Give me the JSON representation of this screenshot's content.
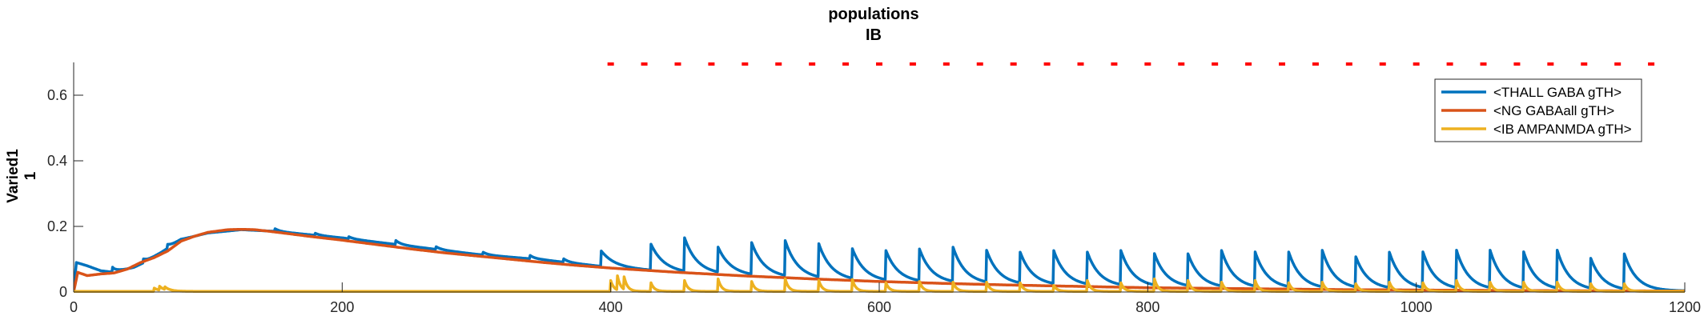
{
  "chart_data": {
    "type": "line",
    "title_lines": [
      "populations",
      "IB"
    ],
    "ylabel_lines": [
      "Varied1",
      "1"
    ],
    "xlabel": "",
    "xlim": [
      0,
      1200
    ],
    "ylim": [
      0,
      0.7
    ],
    "x_ticks": [
      0,
      200,
      400,
      600,
      800,
      1000,
      1200
    ],
    "y_ticks": [
      0,
      0.2,
      0.4,
      0.6
    ],
    "y_tick_labels": [
      "0",
      "0.2",
      "0.4",
      "0.6"
    ],
    "grid": false,
    "legend_location": "top-right",
    "pulse_marker": {
      "color": "#FF0000",
      "y": 0.695,
      "x_start": 400,
      "x_end": 1180,
      "spacing": 25
    },
    "series": [
      {
        "name": "<THALL GABA gTH>",
        "color": "#0072BD",
        "baseline": [
          [
            0,
            0.0
          ],
          [
            2,
            0.09
          ],
          [
            10,
            0.08
          ],
          [
            20,
            0.065
          ],
          [
            30,
            0.06
          ],
          [
            45,
            0.075
          ],
          [
            55,
            0.095
          ],
          [
            65,
            0.12
          ],
          [
            80,
            0.16
          ],
          [
            100,
            0.18
          ],
          [
            125,
            0.19
          ],
          [
            150,
            0.185
          ],
          [
            200,
            0.165
          ],
          [
            250,
            0.14
          ],
          [
            300,
            0.115
          ],
          [
            350,
            0.098
          ],
          [
            400,
            0.075
          ],
          [
            450,
            0.06
          ],
          [
            500,
            0.05
          ],
          [
            550,
            0.04
          ],
          [
            600,
            0.032
          ],
          [
            700,
            0.022
          ],
          [
            800,
            0.015
          ],
          [
            900,
            0.01
          ],
          [
            1000,
            0.007
          ],
          [
            1200,
            0.003
          ]
        ],
        "early_bumps": [
          [
            29,
            0.015
          ],
          [
            52,
            0.012
          ],
          [
            70,
            0.012
          ],
          [
            150,
            0.008
          ],
          [
            180,
            0.006
          ],
          [
            205,
            0.006
          ],
          [
            240,
            0.012
          ],
          [
            270,
            0.008
          ],
          [
            305,
            0.008
          ],
          [
            340,
            0.01
          ],
          [
            365,
            0.01
          ]
        ],
        "spike_times": [
          393,
          430,
          455,
          480,
          505,
          530,
          555,
          580,
          605,
          630,
          655,
          680,
          705,
          730,
          755,
          780,
          805,
          830,
          855,
          880,
          905,
          930,
          955,
          980,
          1005,
          1030,
          1055,
          1080,
          1105,
          1130,
          1155
        ],
        "spike_peaks": [
          0.125,
          0.145,
          0.16,
          0.13,
          0.145,
          0.15,
          0.14,
          0.125,
          0.12,
          0.125,
          0.13,
          0.12,
          0.115,
          0.12,
          0.115,
          0.12,
          0.11,
          0.11,
          0.12,
          0.115,
          0.115,
          0.12,
          0.1,
          0.115,
          0.115,
          0.12,
          0.12,
          0.115,
          0.12,
          0.095,
          0.11
        ],
        "spike_decay": 9
      },
      {
        "name": "<NG GABAall gTH>",
        "color": "#D95319",
        "points": [
          [
            0,
            0.0
          ],
          [
            3,
            0.06
          ],
          [
            10,
            0.05
          ],
          [
            20,
            0.055
          ],
          [
            30,
            0.058
          ],
          [
            40,
            0.07
          ],
          [
            50,
            0.09
          ],
          [
            60,
            0.105
          ],
          [
            70,
            0.125
          ],
          [
            80,
            0.155
          ],
          [
            90,
            0.17
          ],
          [
            100,
            0.182
          ],
          [
            115,
            0.19
          ],
          [
            125,
            0.191
          ],
          [
            135,
            0.19
          ],
          [
            150,
            0.183
          ],
          [
            175,
            0.17
          ],
          [
            200,
            0.158
          ],
          [
            225,
            0.145
          ],
          [
            250,
            0.132
          ],
          [
            275,
            0.12
          ],
          [
            300,
            0.11
          ],
          [
            325,
            0.1
          ],
          [
            350,
            0.09
          ],
          [
            375,
            0.081
          ],
          [
            400,
            0.073
          ],
          [
            450,
            0.06
          ],
          [
            500,
            0.049
          ],
          [
            550,
            0.04
          ],
          [
            600,
            0.032
          ],
          [
            650,
            0.026
          ],
          [
            700,
            0.021
          ],
          [
            750,
            0.017
          ],
          [
            800,
            0.013
          ],
          [
            850,
            0.011
          ],
          [
            900,
            0.009
          ],
          [
            950,
            0.007
          ],
          [
            1000,
            0.006
          ],
          [
            1100,
            0.004
          ],
          [
            1200,
            0.003
          ]
        ]
      },
      {
        "name": "<IB AMPANMDA gTH>",
        "color": "#EDB120",
        "baseline": 0.002,
        "early_bumps": [
          [
            60,
            0.01
          ],
          [
            64,
            0.012
          ],
          [
            68,
            0.008
          ]
        ],
        "spike_times": [
          400,
          405,
          410,
          430,
          455,
          480,
          505,
          530,
          555,
          580,
          605,
          630,
          655,
          680,
          705,
          730,
          755,
          780,
          805,
          830,
          855,
          880,
          905,
          930,
          955,
          980,
          1005,
          1030,
          1055,
          1080,
          1105,
          1130,
          1155
        ],
        "spike_peaks": [
          0.035,
          0.045,
          0.04,
          0.028,
          0.035,
          0.04,
          0.032,
          0.04,
          0.035,
          0.038,
          0.028,
          0.032,
          0.03,
          0.03,
          0.028,
          0.02,
          0.035,
          0.028,
          0.04,
          0.035,
          0.03,
          0.035,
          0.028,
          0.03,
          0.025,
          0.03,
          0.028,
          0.035,
          0.03,
          0.03,
          0.03,
          0.025,
          0.025
        ],
        "spike_decay": 2.5
      }
    ]
  }
}
